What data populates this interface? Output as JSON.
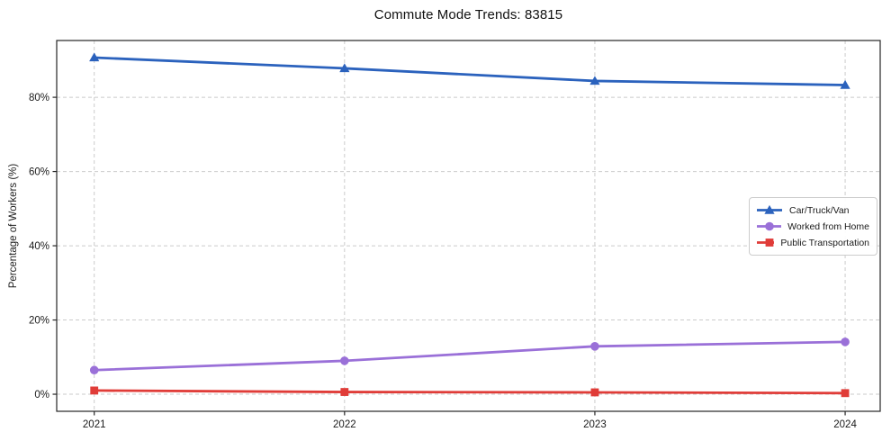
{
  "chart_data": {
    "type": "line",
    "title": "Commute Mode Trends: 83815",
    "xlabel": "",
    "ylabel": "Percentage of Workers (%)",
    "x": [
      2021,
      2022,
      2023,
      2024
    ],
    "x_tick_labels": [
      "2021",
      "2022",
      "2023",
      "2024"
    ],
    "y_ticks": [
      0,
      20,
      40,
      60,
      80
    ],
    "y_tick_labels": [
      "0%",
      "20%",
      "40%",
      "60%",
      "80%"
    ],
    "xlim": [
      2020.85,
      2024.14
    ],
    "ylim": [
      -4.6,
      95.3
    ],
    "grid": "dashed",
    "grid_color": "#cbcbcb",
    "axis_color": "#262626",
    "tick_label_color": "#1a1a1a",
    "legend_position": "center-right",
    "series": [
      {
        "name": "Car/Truck/Van",
        "marker": "triangle",
        "color": "#2b62bd",
        "values": [
          90.7,
          87.8,
          84.4,
          83.3
        ]
      },
      {
        "name": "Worked from Home",
        "marker": "circle",
        "color": "#9a70d8",
        "values": [
          6.5,
          9.0,
          12.9,
          14.1
        ]
      },
      {
        "name": "Public Transportation",
        "marker": "square",
        "color": "#e03c38",
        "values": [
          1.0,
          0.6,
          0.5,
          0.3
        ]
      }
    ]
  }
}
